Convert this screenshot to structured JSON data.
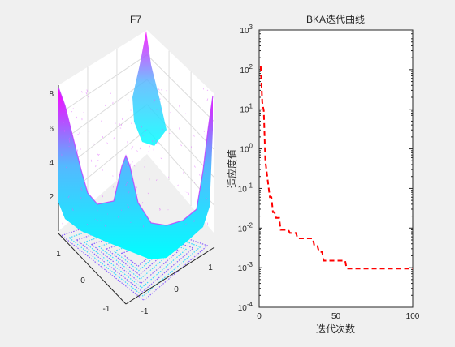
{
  "chart_data": [
    {
      "type": "surface3d",
      "title": "F7",
      "zticks": [
        "2",
        "4",
        "6",
        "8"
      ],
      "xticks": [
        "-1",
        "0",
        "1"
      ],
      "yticks": [
        "-1",
        "0",
        "1"
      ],
      "xlim": [
        -1.28,
        1.28
      ],
      "ylim": [
        -1.28,
        1.28
      ],
      "zlim": [
        0,
        8.5
      ],
      "colormap": [
        "#00ffff",
        "#ff00ff"
      ],
      "contour_below": true
    },
    {
      "type": "line",
      "title": "BKA迭代曲线",
      "xlabel": "迭代次数",
      "ylabel": "适应度值",
      "yscale": "log",
      "xlim": [
        0,
        100
      ],
      "ylim": [
        0.0001,
        1000
      ],
      "xticks": [
        "0",
        "50",
        "100"
      ],
      "yticks": [
        {
          "base": "10",
          "exp": "-4"
        },
        {
          "base": "10",
          "exp": "-3"
        },
        {
          "base": "10",
          "exp": "-2"
        },
        {
          "base": "10",
          "exp": "-1"
        },
        {
          "base": "10",
          "exp": "0"
        },
        {
          "base": "10",
          "exp": "1"
        },
        {
          "base": "10",
          "exp": "2"
        },
        {
          "base": "10",
          "exp": "3"
        }
      ],
      "series": [
        {
          "color": "#ff0000",
          "linestyle": "dashed",
          "x": [
            1,
            2,
            3,
            4,
            5,
            6,
            7,
            8,
            9,
            10,
            11,
            12,
            13,
            14,
            15,
            16,
            17,
            18,
            19,
            20,
            21,
            22,
            23,
            24,
            25,
            26,
            27,
            28,
            29,
            30,
            31,
            32,
            33,
            34,
            35,
            36,
            37,
            38,
            39,
            40,
            41,
            42,
            43,
            44,
            45,
            46,
            47,
            48,
            49,
            50,
            51,
            52,
            53,
            54,
            55,
            56,
            57,
            58,
            59,
            60,
            61,
            62,
            63,
            64,
            65,
            66,
            67,
            68,
            69,
            70,
            71,
            72,
            73,
            74,
            75,
            76,
            77,
            78,
            79,
            80,
            81,
            82,
            83,
            84,
            85,
            86,
            87,
            88,
            89,
            90,
            91,
            92,
            93,
            94,
            95,
            96,
            97,
            98,
            99,
            100
          ],
          "y": [
            120,
            15,
            9,
            0.5,
            0.25,
            0.12,
            0.06,
            0.06,
            0.025,
            0.025,
            0.018,
            0.018,
            0.018,
            0.009,
            0.009,
            0.009,
            0.009,
            0.009,
            0.009,
            0.0075,
            0.0075,
            0.0075,
            0.0075,
            0.0075,
            0.0055,
            0.0055,
            0.0055,
            0.0055,
            0.0055,
            0.0055,
            0.0055,
            0.0055,
            0.0055,
            0.0055,
            0.0055,
            0.0035,
            0.0035,
            0.0035,
            0.0025,
            0.0025,
            0.0025,
            0.0015,
            0.0015,
            0.0015,
            0.0015,
            0.0015,
            0.0015,
            0.0015,
            0.0015,
            0.0015,
            0.0015,
            0.0015,
            0.0015,
            0.0015,
            0.0015,
            0.0015,
            0.00095,
            0.00095,
            0.00095,
            0.00095,
            0.00095,
            0.00095,
            0.00095,
            0.00095,
            0.00095,
            0.00095,
            0.00095,
            0.00095,
            0.00095,
            0.00095,
            0.00095,
            0.00095,
            0.00095,
            0.00095,
            0.00095,
            0.00095,
            0.00095,
            0.00095,
            0.00095,
            0.00095,
            0.00095,
            0.00095,
            0.00095,
            0.00095,
            0.00095,
            0.00095,
            0.00095,
            0.00095,
            0.00095,
            0.00095,
            0.00095,
            0.00095,
            0.00095,
            0.00095,
            0.00095,
            0.00095,
            0.00095,
            0.00095,
            0.00095,
            0.00095
          ]
        }
      ]
    }
  ]
}
